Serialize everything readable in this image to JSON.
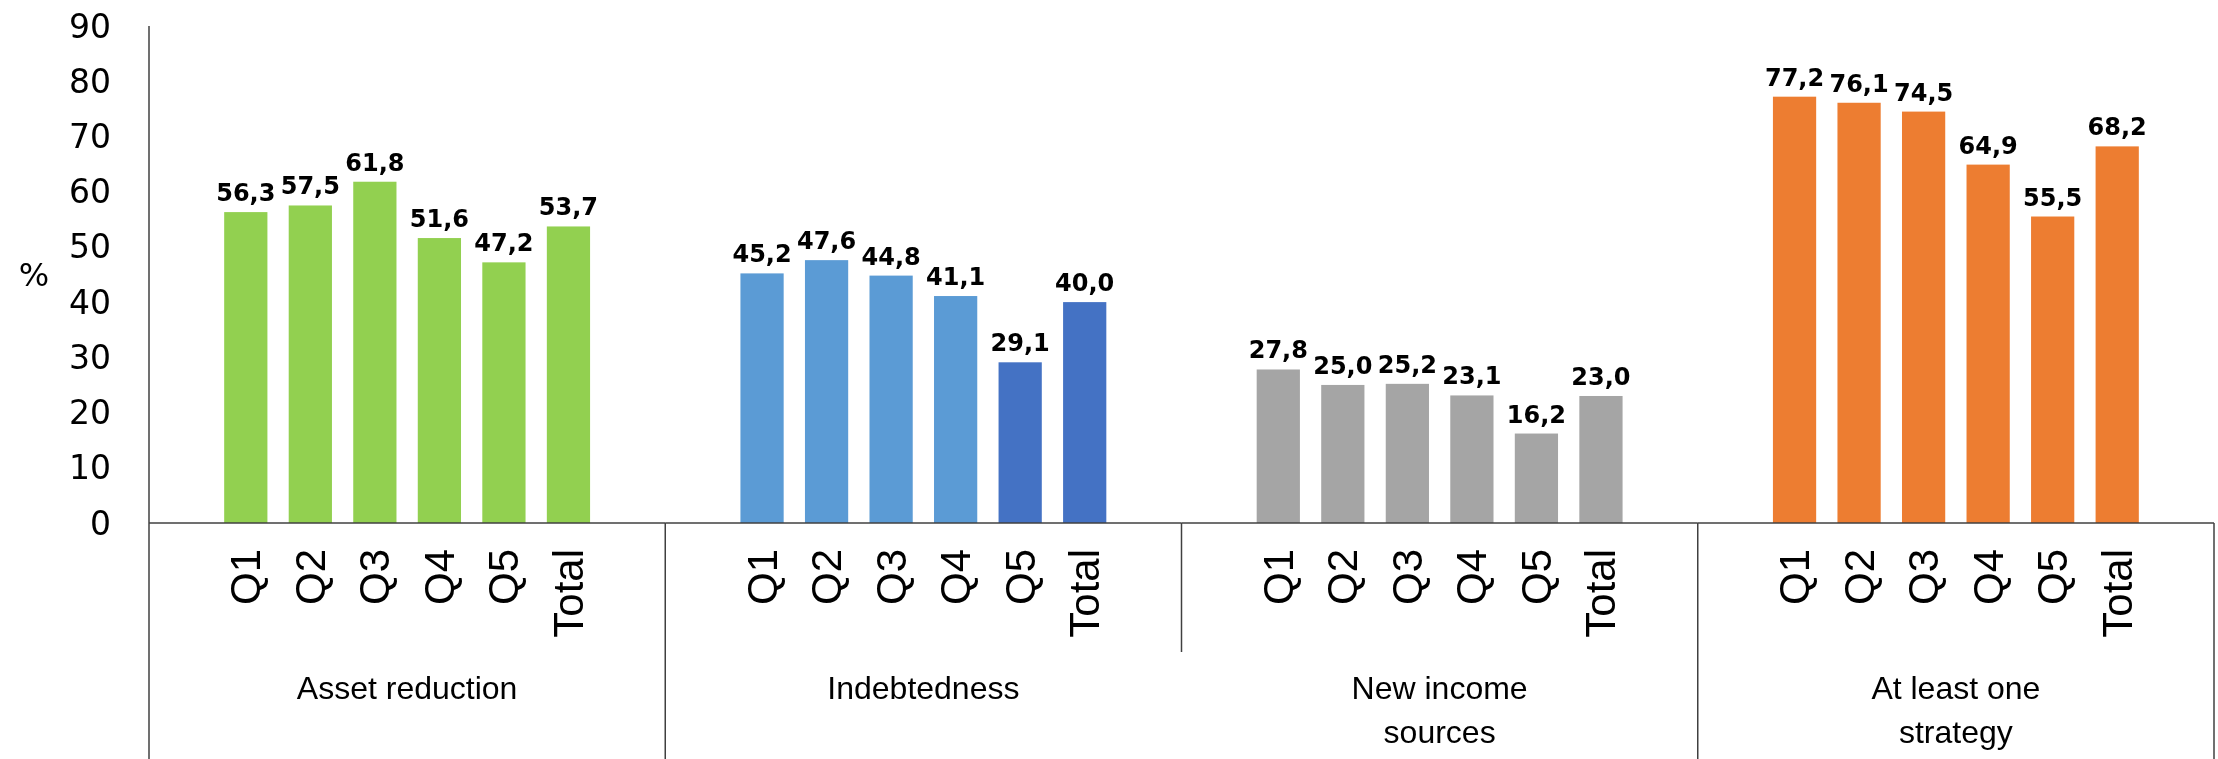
{
  "chart_data": [
    {
      "type": "bar",
      "categories": [
        "Q1",
        "Q2",
        "Q3",
        "Q4",
        "Q5",
        "Total"
      ],
      "values": [
        56.3,
        57.5,
        61.8,
        51.6,
        47.2,
        53.7
      ],
      "colors": [
        "#92d050",
        "#92d050",
        "#92d050",
        "#92d050",
        "#92d050",
        "#92d050"
      ],
      "value_labels": [
        "56,3",
        "57,5",
        "61,8",
        "51,6",
        "47,2",
        "53,7"
      ],
      "xlabel": "Asset reduction",
      "ylabel": "%",
      "ylim": [
        0,
        90
      ],
      "yticks": [
        0,
        10,
        20,
        30,
        40,
        50,
        60,
        70,
        80,
        90
      ]
    },
    {
      "type": "bar",
      "categories": [
        "Q1",
        "Q2",
        "Q3",
        "Q4",
        "Q5",
        "Total"
      ],
      "values": [
        45.2,
        47.6,
        44.8,
        41.1,
        29.1,
        40.0
      ],
      "colors": [
        "#5b9bd5",
        "#5b9bd5",
        "#5b9bd5",
        "#5b9bd5",
        "#4472c4",
        "#4472c4"
      ],
      "value_labels": [
        "45,2",
        "47,6",
        "44,8",
        "41,1",
        "29,1",
        "40,0"
      ],
      "xlabel": "Indebtedness",
      "ylim": [
        0,
        90
      ],
      "tick_labels": "x"
    },
    {
      "type": "bar",
      "categories": [
        "Q1",
        "Q2",
        "Q3",
        "Q4",
        "Q5",
        "Total"
      ],
      "values": [
        27.8,
        25.0,
        25.2,
        23.1,
        16.2,
        23.0
      ],
      "colors": [
        "#a5a5a5",
        "#a5a5a5",
        "#a5a5a5",
        "#a5a5a5",
        "#a5a5a5",
        "#a5a5a5"
      ],
      "value_labels": [
        "27,8",
        "25,0",
        "25,2",
        "23,1",
        "16,2",
        "23,0"
      ],
      "xlabel": "New income sources",
      "ylim": [
        0,
        90
      ],
      "tick_labels": "x"
    },
    {
      "type": "bar",
      "categories": [
        "Q1",
        "Q2",
        "Q3",
        "Q4",
        "Q5",
        "Total"
      ],
      "values": [
        77.2,
        76.1,
        74.5,
        64.9,
        55.5,
        68.2
      ],
      "colors": [
        "#ed7d31",
        "#ed7d31",
        "#ed7d31",
        "#ed7d31",
        "#ed7d31",
        "#ed7d31"
      ],
      "value_labels": [
        "77,2",
        "76,1",
        "74,5",
        "64,9",
        "55,5",
        "68,2"
      ],
      "xlabel": "At least one strategy",
      "ylim": [
        0,
        90
      ],
      "tick_labels": "x"
    }
  ]
}
